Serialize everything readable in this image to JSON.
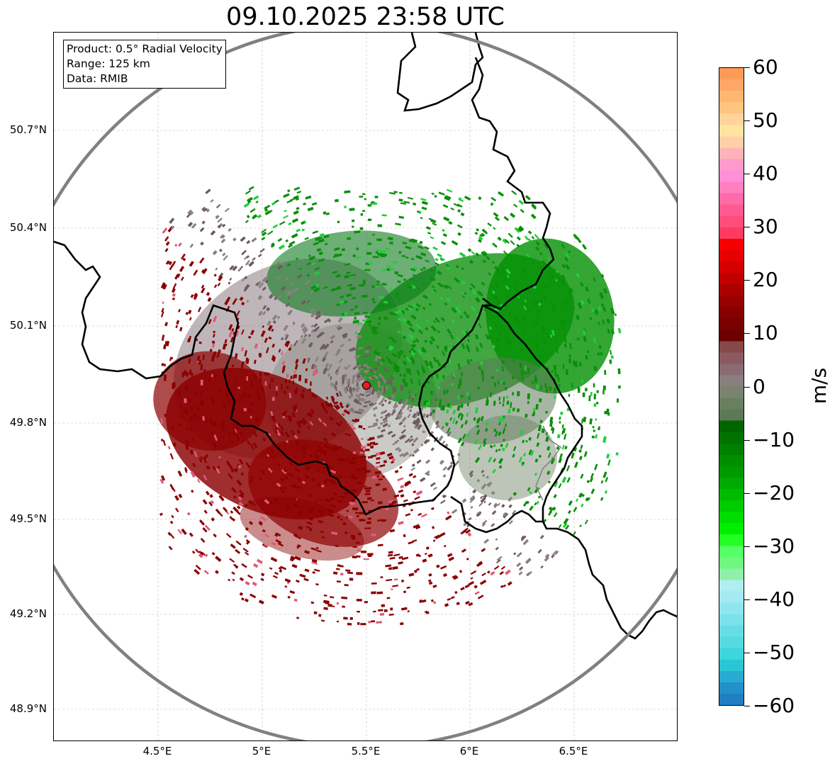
{
  "title": "09.10.2025 23:58 UTC",
  "info_box": {
    "product": "Product: 0.5° Radial Velocity",
    "range": "Range: 125 km",
    "data": "Data: RMIB"
  },
  "axes": {
    "lat_ticks": [
      "50.7°N",
      "50.4°N",
      "50.1°N",
      "49.8°N",
      "49.5°N",
      "49.2°N",
      "48.9°N"
    ],
    "lon_ticks": [
      "4.5°E",
      "5°E",
      "5.5°E",
      "6°E",
      "6.5°E"
    ]
  },
  "colorbar": {
    "unit": "m/s",
    "ticks": [
      "60",
      "50",
      "40",
      "30",
      "20",
      "10",
      "0",
      "−10",
      "−20",
      "−30",
      "−40",
      "−50",
      "−60"
    ],
    "range": [
      -60,
      60
    ]
  },
  "colors": {
    "approaching_green": "#0a8f0a",
    "receding_red": "#8b0000",
    "near_zero_gray": "#8a7f7f",
    "range_ring": "#808080",
    "border": "#000000",
    "radar_site": "#e02020"
  }
}
